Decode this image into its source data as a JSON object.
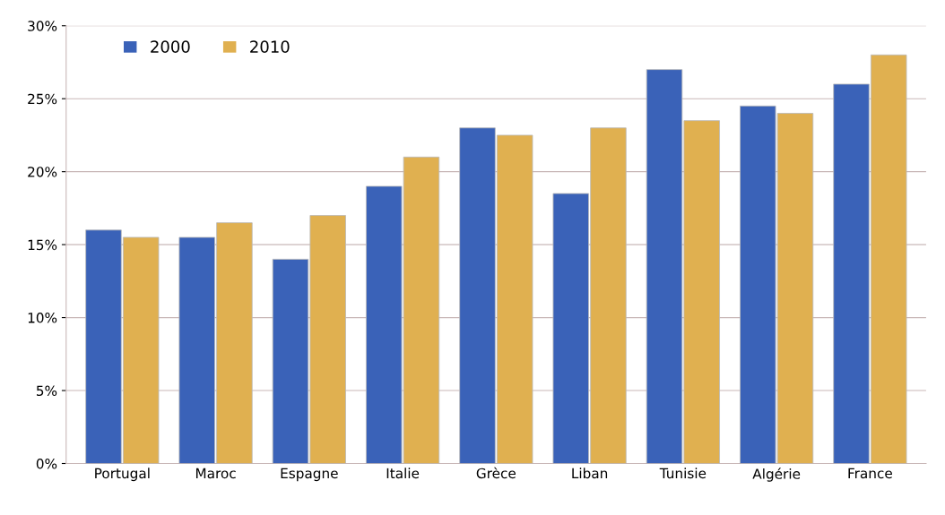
{
  "chart_data": {
    "type": "bar",
    "categories": [
      "Portugal",
      "Maroc",
      "Espagne",
      "Italie",
      "Grèce",
      "Liban",
      "Tunisie",
      "Algérie",
      "France"
    ],
    "series": [
      {
        "name": "2000",
        "color": "#3a62b8",
        "values": [
          16,
          15.5,
          14,
          19,
          23,
          18.5,
          27,
          24.5,
          26
        ]
      },
      {
        "name": "2010",
        "color": "#e0b050",
        "values": [
          15.5,
          16.5,
          17,
          21,
          22.5,
          23,
          23.5,
          24,
          28
        ]
      }
    ],
    "ylim": [
      0,
      30
    ],
    "yticks": [
      {
        "value": 0,
        "label": "0%"
      },
      {
        "value": 5,
        "label": "5%"
      },
      {
        "value": 10,
        "label": "10%"
      },
      {
        "value": 15,
        "label": "15%"
      },
      {
        "value": 20,
        "label": "20%"
      },
      {
        "value": 25,
        "label": "25%"
      },
      {
        "value": 30,
        "label": "30%"
      }
    ],
    "grid": "y",
    "legend": "top left"
  }
}
